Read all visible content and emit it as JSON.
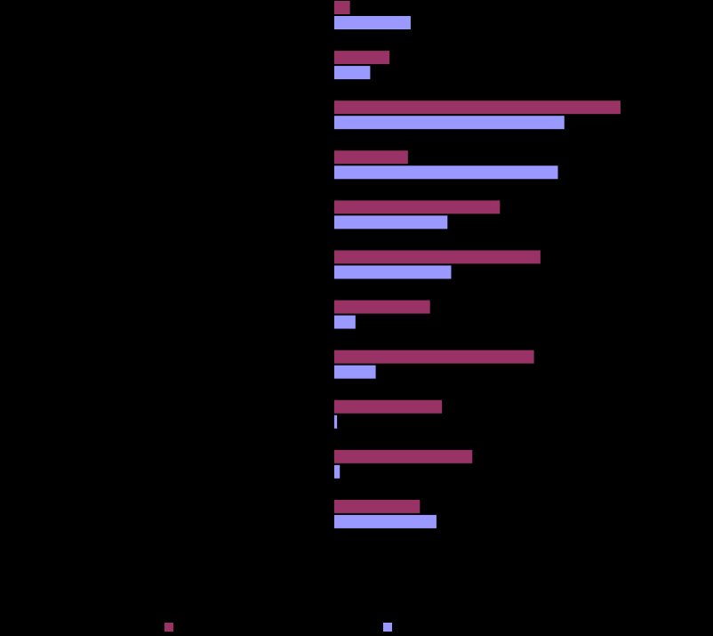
{
  "chart_data": {
    "type": "bar",
    "orientation": "horizontal",
    "title": "",
    "xlabel": "",
    "ylabel": "",
    "xlim": [
      0,
      4
    ],
    "grid": false,
    "legend": "bottom",
    "categories": [
      "",
      "",
      "",
      "",
      "",
      "",
      "",
      "",
      "",
      "",
      ""
    ],
    "series": [
      {
        "color": "#993366",
        "values": [
          0.18,
          0.61,
          3.12,
          0.81,
          1.81,
          2.25,
          1.05,
          2.18,
          1.18,
          1.51,
          0.94
        ]
      },
      {
        "color": "#9999FF",
        "values": [
          0.84,
          0.4,
          2.51,
          2.44,
          1.24,
          1.28,
          0.24,
          0.46,
          0.04,
          0.07,
          1.12
        ]
      }
    ]
  }
}
